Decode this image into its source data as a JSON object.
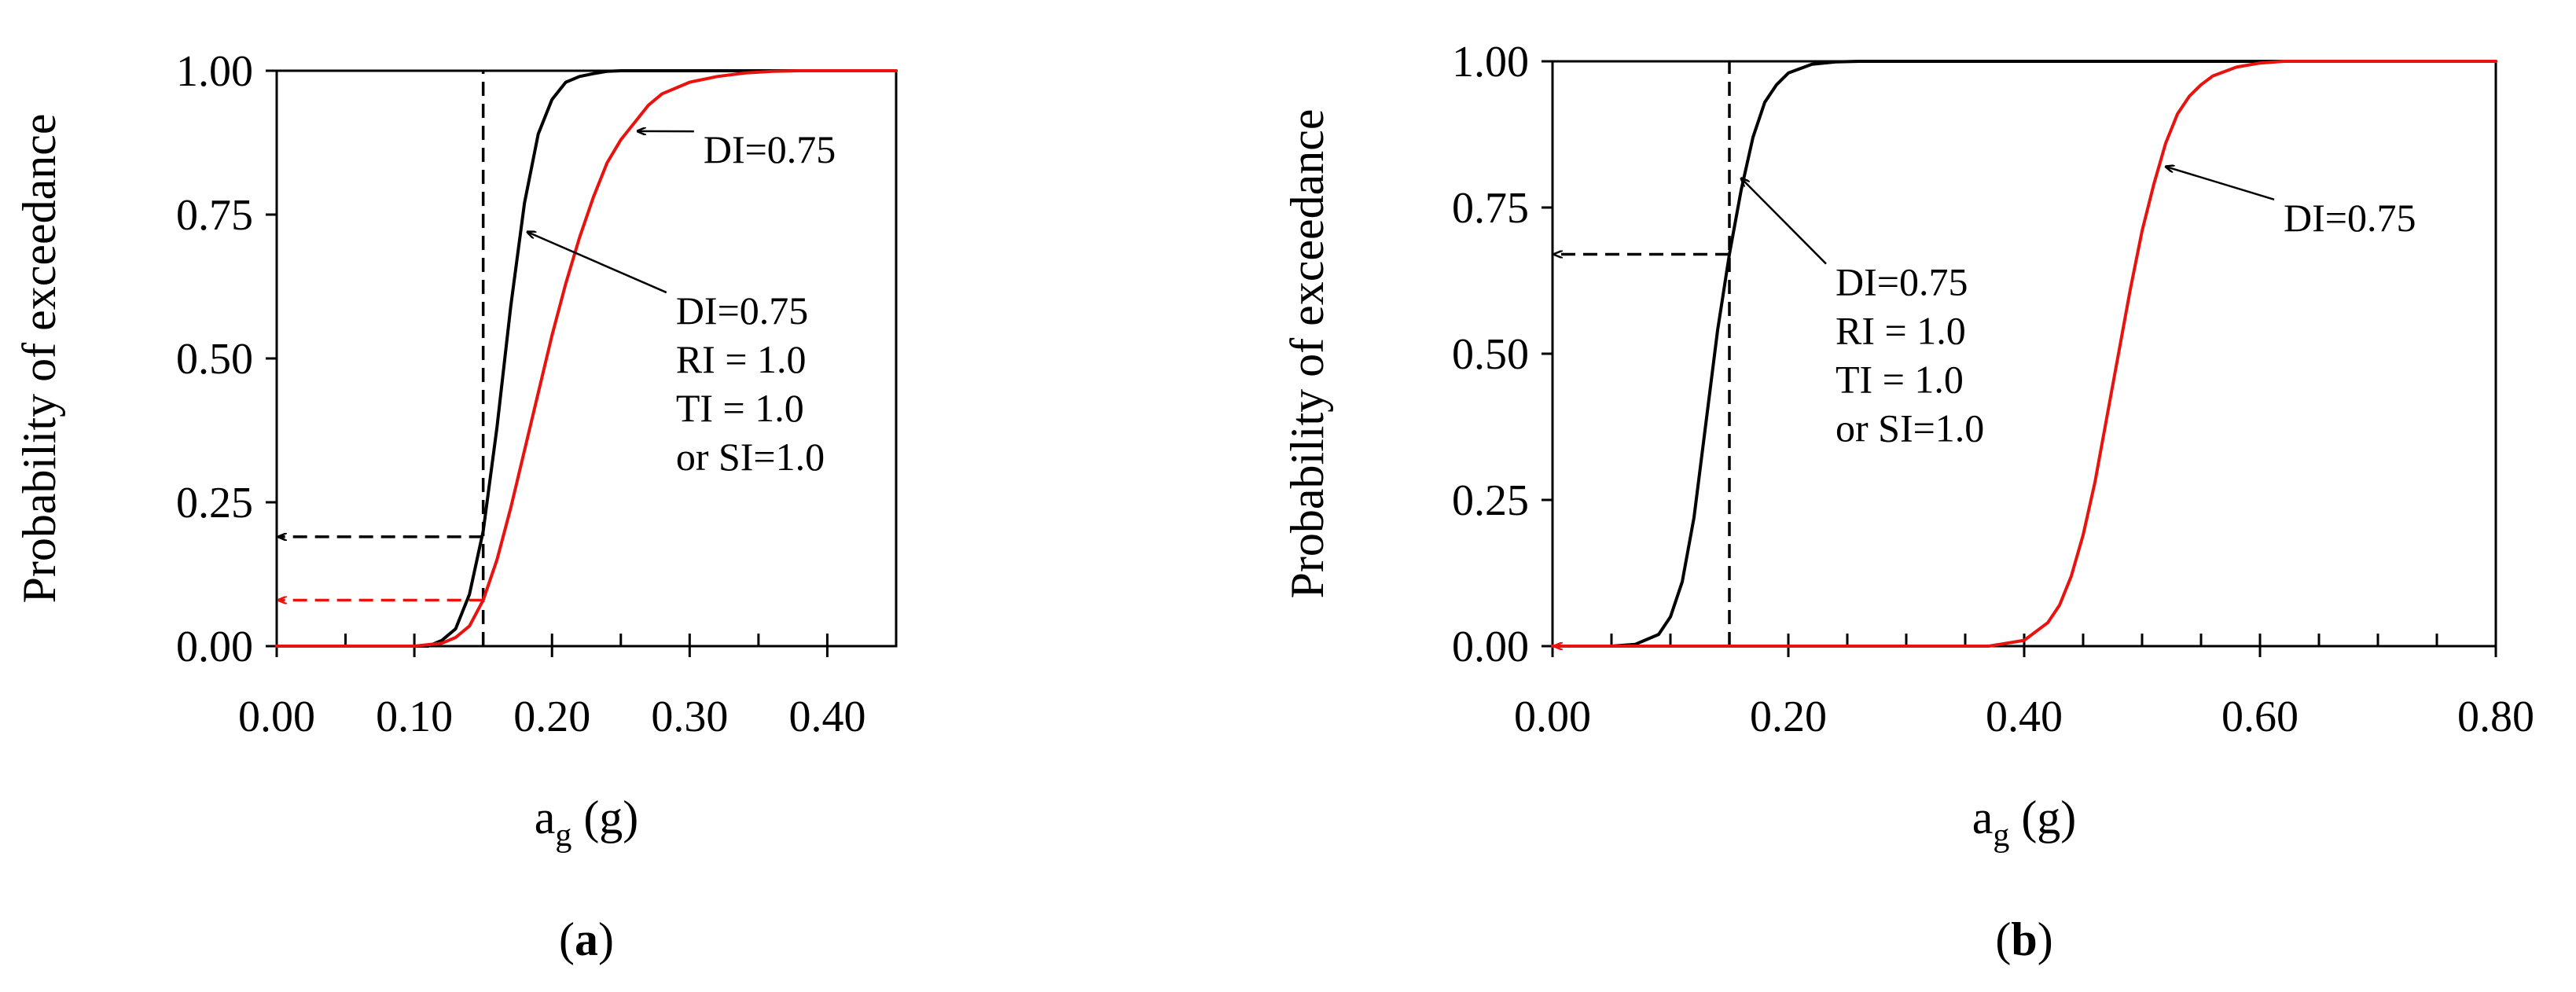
{
  "chart_data": [
    {
      "type": "line",
      "panel_label": "a",
      "ylabel": "Probability of exceedance",
      "xlabel_main": "a",
      "xlabel_sub": "g",
      "xlabel_unit": " (g)",
      "xlim": [
        0,
        0.45
      ],
      "ylim": [
        0,
        1
      ],
      "x_ticks": [
        0,
        0.1,
        0.2,
        0.3,
        0.4
      ],
      "x_tick_labels": [
        "0.00",
        "0.10",
        "0.20",
        "0.30",
        "0.40"
      ],
      "x_minor_step": 0.05,
      "y_ticks": [
        0,
        0.25,
        0.5,
        0.75,
        1
      ],
      "y_tick_labels": [
        "0.00",
        "0.25",
        "0.50",
        "0.75",
        "1.00"
      ],
      "series": [
        {
          "name": "DI=0.75 RI=1.0 TI=1.0 or SI=1.0",
          "color": "#000000",
          "x": [
            0.1,
            0.11,
            0.12,
            0.13,
            0.14,
            0.15,
            0.16,
            0.17,
            0.18,
            0.19,
            0.2,
            0.21,
            0.22,
            0.23,
            0.24,
            0.25,
            0.27,
            0.3,
            0.35,
            0.45
          ],
          "y": [
            0.0,
            0.0,
            0.01,
            0.03,
            0.09,
            0.2,
            0.38,
            0.59,
            0.77,
            0.89,
            0.95,
            0.98,
            0.99,
            0.995,
            0.999,
            1.0,
            1.0,
            1.0,
            1.0,
            1.0
          ]
        },
        {
          "name": "DI=0.75",
          "color": "#e8130f",
          "x": [
            0.0,
            0.1,
            0.12,
            0.13,
            0.14,
            0.15,
            0.16,
            0.17,
            0.18,
            0.19,
            0.2,
            0.21,
            0.22,
            0.23,
            0.24,
            0.25,
            0.26,
            0.27,
            0.28,
            0.29,
            0.3,
            0.32,
            0.34,
            0.36,
            0.38,
            0.4,
            0.45
          ],
          "y": [
            0.0,
            0.0,
            0.005,
            0.015,
            0.035,
            0.08,
            0.15,
            0.24,
            0.34,
            0.44,
            0.54,
            0.63,
            0.71,
            0.78,
            0.84,
            0.88,
            0.91,
            0.94,
            0.96,
            0.97,
            0.98,
            0.99,
            0.996,
            0.999,
            1.0,
            1.0,
            1.0
          ]
        }
      ],
      "guides": [
        {
          "kind": "vline",
          "x": 0.15,
          "y_from": 0,
          "y_to": 1,
          "color": "#000000"
        },
        {
          "kind": "harrow",
          "y": 0.19,
          "x_from": 0.15,
          "x_to": 0,
          "color": "#000000"
        },
        {
          "kind": "harrow",
          "y": 0.08,
          "x_from": 0.15,
          "x_to": 0,
          "color": "#e8130f"
        }
      ],
      "annotations": [
        {
          "lines": [
            "DI=0.75"
          ],
          "text_at": [
            0.31,
            0.84
          ],
          "arrow_to": [
            0.262,
            0.895
          ]
        },
        {
          "lines": [
            "DI=0.75",
            "RI = 1.0",
            "TI = 1.0",
            "or SI=1.0"
          ],
          "text_at": [
            0.29,
            0.56
          ],
          "arrow_to": [
            0.182,
            0.72
          ]
        }
      ]
    },
    {
      "type": "line",
      "panel_label": "b",
      "ylabel": "Probability of exceedance",
      "xlabel_main": "a",
      "xlabel_sub": "g",
      "xlabel_unit": " (g)",
      "xlim": [
        0,
        0.8
      ],
      "ylim": [
        0,
        1
      ],
      "x_ticks": [
        0,
        0.2,
        0.4,
        0.6,
        0.8
      ],
      "x_tick_labels": [
        "0.00",
        "0.20",
        "0.40",
        "0.60",
        "0.80"
      ],
      "x_minor_step": 0.05,
      "y_ticks": [
        0,
        0.25,
        0.5,
        0.75,
        1
      ],
      "y_tick_labels": [
        "0.00",
        "0.25",
        "0.50",
        "0.75",
        "1.00"
      ],
      "series": [
        {
          "name": "DI=0.75 RI=1.0 TI=1.0 or SI=1.0",
          "color": "#000000",
          "x": [
            0.05,
            0.07,
            0.09,
            0.1,
            0.11,
            0.12,
            0.13,
            0.14,
            0.15,
            0.16,
            0.17,
            0.18,
            0.19,
            0.2,
            0.22,
            0.24,
            0.26,
            0.3,
            0.8
          ],
          "y": [
            0.0,
            0.003,
            0.02,
            0.05,
            0.11,
            0.22,
            0.38,
            0.54,
            0.67,
            0.78,
            0.87,
            0.93,
            0.96,
            0.98,
            0.995,
            0.999,
            1.0,
            1.0,
            1.0
          ]
        },
        {
          "name": "DI=0.75",
          "color": "#e8130f",
          "x": [
            0.0,
            0.37,
            0.4,
            0.42,
            0.43,
            0.44,
            0.45,
            0.46,
            0.47,
            0.48,
            0.49,
            0.5,
            0.51,
            0.52,
            0.53,
            0.54,
            0.55,
            0.56,
            0.58,
            0.6,
            0.62,
            0.65,
            0.8
          ],
          "y": [
            0.0,
            0.0,
            0.01,
            0.04,
            0.07,
            0.12,
            0.19,
            0.28,
            0.39,
            0.5,
            0.61,
            0.71,
            0.79,
            0.86,
            0.91,
            0.94,
            0.96,
            0.975,
            0.99,
            0.997,
            1.0,
            1.0,
            1.0
          ]
        }
      ],
      "guides": [
        {
          "kind": "vline",
          "x": 0.15,
          "y_from": 0,
          "y_to": 1,
          "color": "#000000"
        },
        {
          "kind": "harrow",
          "y": 0.67,
          "x_from": 0.15,
          "x_to": 0,
          "color": "#000000"
        },
        {
          "kind": "harrow",
          "y": 0.0,
          "x_from": 0.012,
          "x_to": 0,
          "color": "#e8130f"
        }
      ],
      "annotations": [
        {
          "lines": [
            "DI=0.75"
          ],
          "text_at": [
            0.62,
            0.71
          ],
          "arrow_to": [
            0.52,
            0.82
          ]
        },
        {
          "lines": [
            "DI=0.75",
            "RI = 1.0",
            "TI = 1.0",
            "or SI=1.0"
          ],
          "text_at": [
            0.24,
            0.6
          ],
          "arrow_to": [
            0.16,
            0.8
          ]
        }
      ]
    }
  ]
}
